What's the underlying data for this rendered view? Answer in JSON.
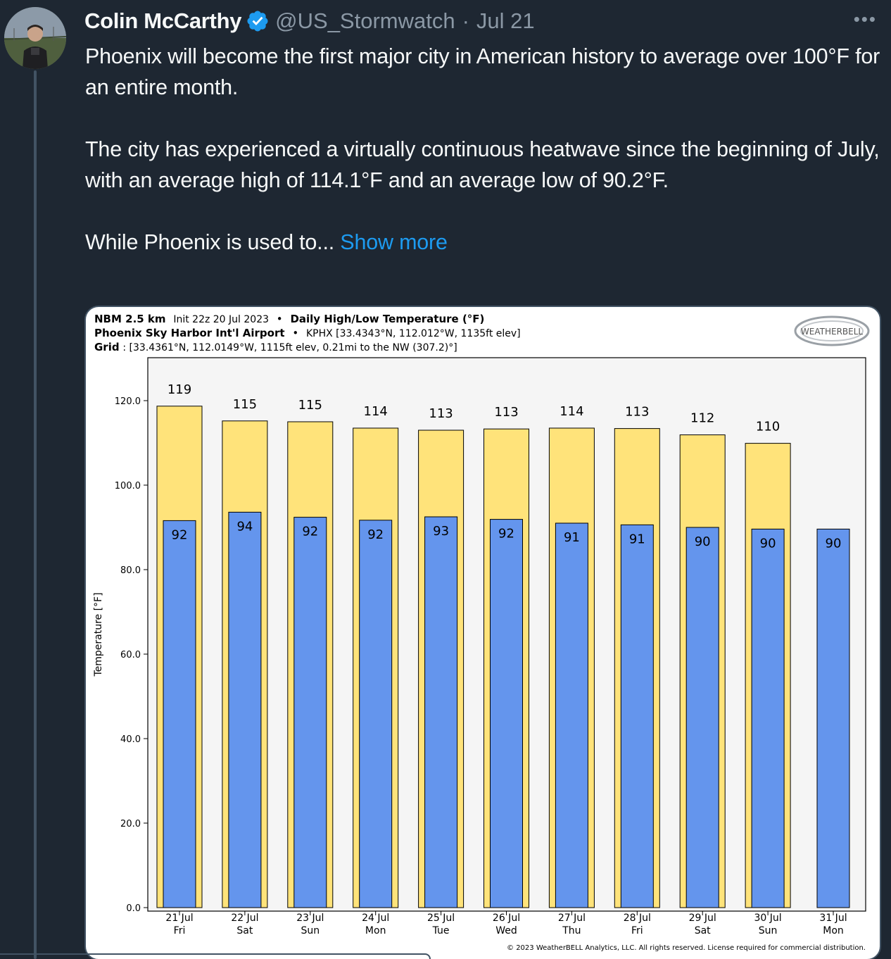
{
  "tweet": {
    "author_name": "Colin McCarthy",
    "handle": "@US_Stormwatch",
    "separator": "·",
    "date": "Jul 21",
    "more_icon": "ellipsis-icon",
    "verified_icon": "verified-badge-icon",
    "paragraphs": [
      "Phoenix will become the first major city in American history to average over 100°F for an entire month.",
      "The city has experienced a virtually continuous heatwave since the beginning of July, with an average high of 114.1°F and an average low of 90.2°F.",
      "While Phoenix is used to..."
    ],
    "show_more": "Show more",
    "colors": {
      "background": "#1e2732",
      "link": "#1d9bf0",
      "verified": "#1d9bf0"
    }
  },
  "chart_header": {
    "line1_bold": "NBM 2.5 km",
    "line1_init": "Init 22z 20 Jul 2023",
    "line1_sep": "•",
    "line1_title": "Daily High/Low Temperature (°F)",
    "line2_bold": "Phoenix Sky Harbor Int'l Airport",
    "line2_sep": "•",
    "line2_rest": "KPHX [33.4343°N, 112.012°W, 1135ft elev]",
    "line3_bold": "Grid",
    "line3_rest": ": [33.4361°N, 112.0149°W, 1115ft elev, 0.21mi to the NW (307.2)°]",
    "logo_text": "WEATHERBELL",
    "copyright": "© 2023 WeatherBELL Analytics, LLC. All rights reserved. License required for commercial distribution."
  },
  "chart_data": {
    "type": "bar",
    "ylabel": "Temperature [°F]",
    "ylim": [
      0,
      130
    ],
    "yticks": [
      0,
      20,
      40,
      60,
      80,
      100,
      120
    ],
    "ytick_labels": [
      "0.0",
      "20.0",
      "40.0",
      "60.0",
      "80.0",
      "100.0",
      "120.0"
    ],
    "categories": [
      "21 Jul",
      "22 Jul",
      "23 Jul",
      "24 Jul",
      "25 Jul",
      "26 Jul",
      "27 Jul",
      "28 Jul",
      "29 Jul",
      "30 Jul",
      "31 Jul"
    ],
    "weekdays": [
      "Fri",
      "Sat",
      "Sun",
      "Mon",
      "Tue",
      "Wed",
      "Thu",
      "Fri",
      "Sat",
      "Sun",
      "Mon"
    ],
    "series": [
      {
        "values": [
          118.7,
          115.2,
          115.0,
          113.5,
          113.0,
          113.3,
          113.5,
          113.4,
          111.9,
          109.9,
          null
        ],
        "labels": [
          "119",
          "115",
          "115",
          "114",
          "113",
          "113",
          "114",
          "113",
          "112",
          "110",
          ""
        ],
        "color": "#ffe37a"
      },
      {
        "values": [
          91.6,
          93.6,
          92.4,
          91.7,
          92.5,
          91.9,
          91.0,
          90.6,
          90.0,
          89.6,
          89.6
        ],
        "labels": [
          "92",
          "94",
          "92",
          "92",
          "93",
          "92",
          "91",
          "91",
          "90",
          "90",
          "90"
        ],
        "color": "#6495ed"
      }
    ],
    "grid": false
  }
}
